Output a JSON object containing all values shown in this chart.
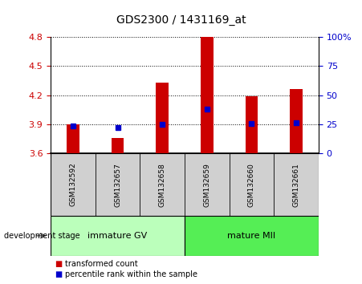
{
  "title": "GDS2300 / 1431169_at",
  "samples": [
    "GSM132592",
    "GSM132657",
    "GSM132658",
    "GSM132659",
    "GSM132660",
    "GSM132661"
  ],
  "bar_tops": [
    3.9,
    3.76,
    4.33,
    4.8,
    4.19,
    4.26
  ],
  "bar_bottom": 3.6,
  "percentile_values": [
    3.88,
    3.87,
    3.9,
    4.06,
    3.91,
    3.915
  ],
  "ylim": [
    3.6,
    4.8
  ],
  "y_ticks": [
    3.6,
    3.9,
    4.2,
    4.5,
    4.8
  ],
  "right_yticks": [
    0,
    25,
    50,
    75,
    100
  ],
  "groups": [
    {
      "label": "immature GV",
      "samples": [
        0,
        1,
        2
      ],
      "color": "#bbffbb"
    },
    {
      "label": "mature MII",
      "samples": [
        3,
        4,
        5
      ],
      "color": "#55ee55"
    }
  ],
  "group_label": "development stage",
  "bar_color": "#cc0000",
  "percentile_color": "#0000cc",
  "left_axis_color": "#cc0000",
  "right_axis_color": "#0000cc",
  "sample_bg_color": "#d0d0d0",
  "legend_items": [
    "transformed count",
    "percentile rank within the sample"
  ]
}
